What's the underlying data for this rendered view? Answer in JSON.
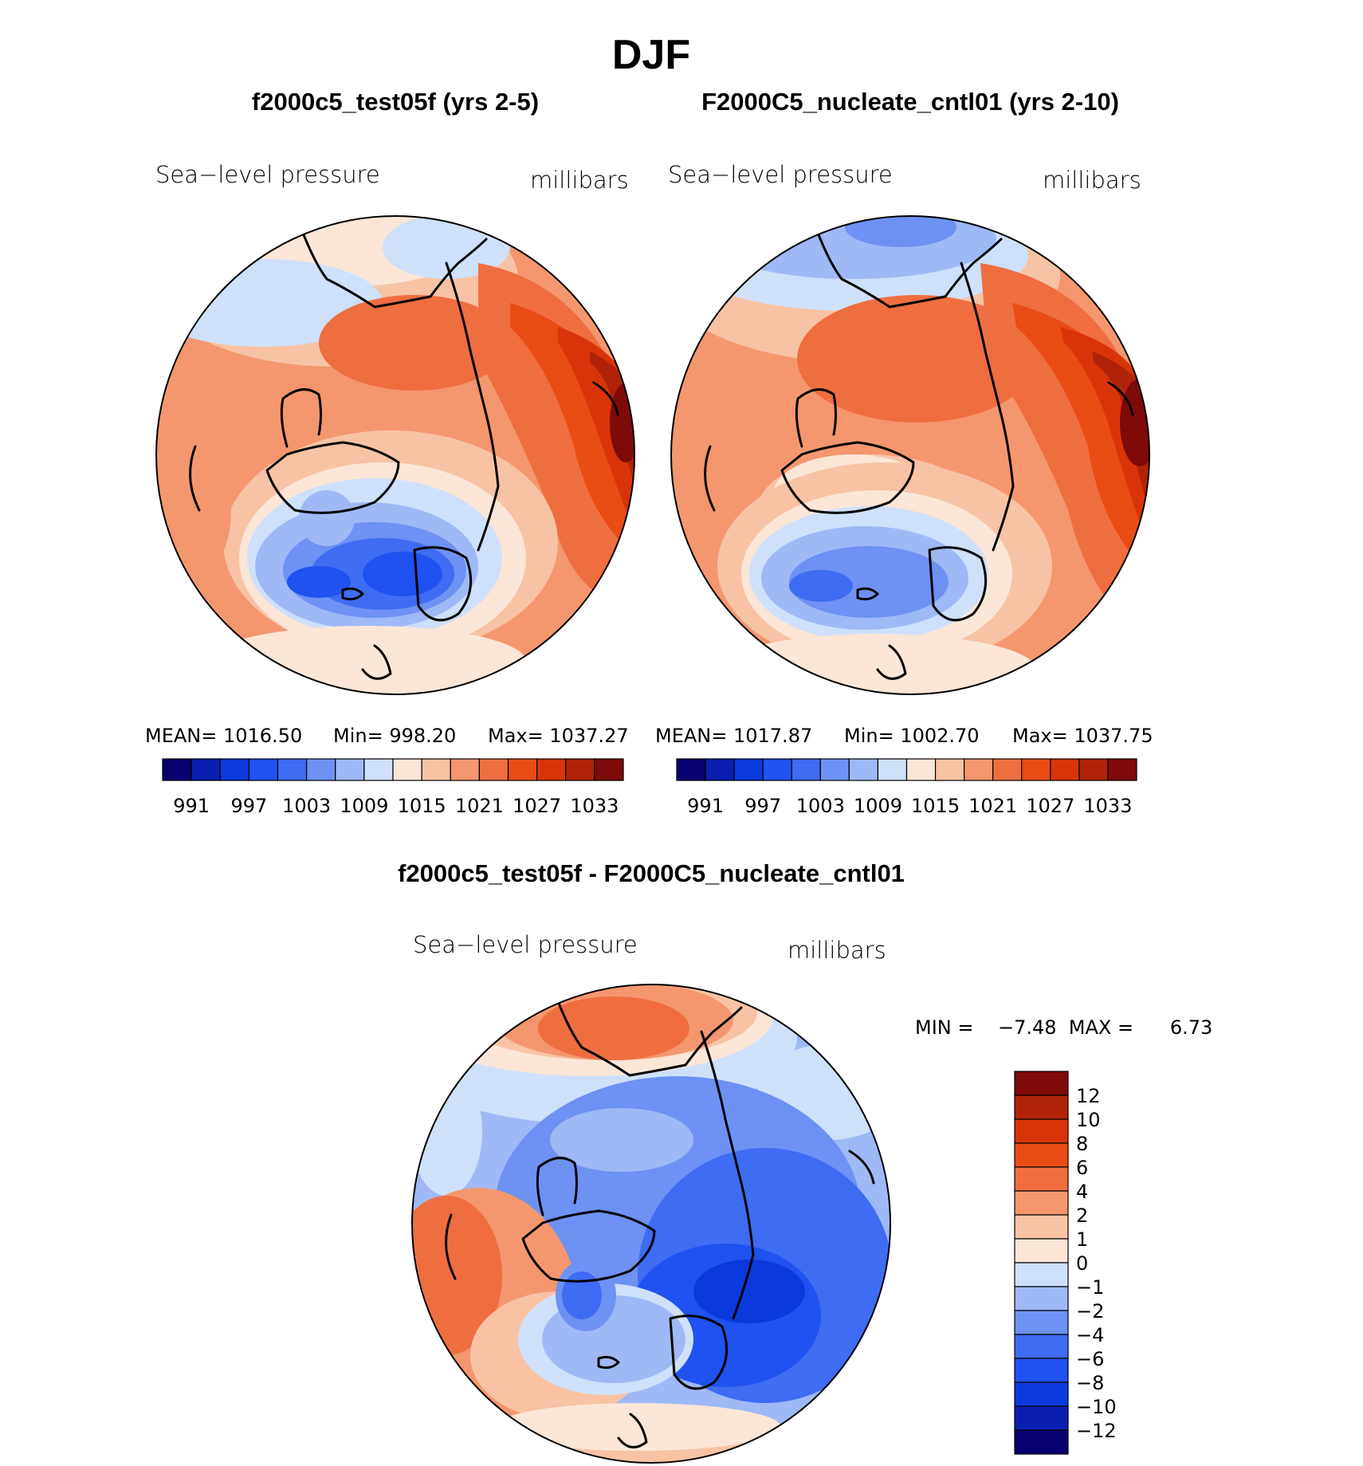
{
  "figure": {
    "title": "DJF",
    "variable_label": "Sea−level pressure",
    "units_label": "millibars"
  },
  "colors": {
    "diverging_scale": [
      "#08006f",
      "#0a1fb0",
      "#0b3adc",
      "#1f52f0",
      "#3e6cf2",
      "#6d92f3",
      "#9fb9f7",
      "#cfe0fb",
      "#fbe6d8",
      "#f8c3a4",
      "#f4976f",
      "#ef6e40",
      "#ea4c16",
      "#d93409",
      "#b02309",
      "#7f0a0a"
    ]
  },
  "panels": {
    "test": {
      "title": "f2000c5_test05f (yrs 2-5)",
      "mean_text": "MEAN=  1016.50",
      "min_text": "Min=  998.20",
      "max_text": "Max=  1037.27"
    },
    "control": {
      "title": "F2000C5_nucleate_cntl01 (yrs 2-10)",
      "mean_text": "MEAN=  1017.87",
      "min_text": "Min=  1002.70",
      "max_text": "Max=  1037.75"
    },
    "difference": {
      "title": "f2000c5_test05f - F2000C5_nucleate_cntl01",
      "minmax_text": "MIN =    −7.48  MAX =      6.73"
    }
  },
  "chart_data": [
    {
      "type": "heatmap",
      "name": "test",
      "title": "f2000c5_test05f (yrs 2-5)",
      "variable": "Sea−level pressure",
      "units": "millibars",
      "colorbar_ticks": [
        "991",
        "997",
        "1003",
        "1009",
        "1015",
        "1021",
        "1027",
        "1033"
      ],
      "contour_levels": [
        991,
        994,
        997,
        1000,
        1003,
        1006,
        1009,
        1012,
        1015,
        1018,
        1021,
        1024,
        1027,
        1030,
        1033
      ],
      "mean": 1016.5,
      "min": 998.2,
      "max": 1037.27
    },
    {
      "type": "heatmap",
      "name": "control",
      "title": "F2000C5_nucleate_cntl01 (yrs 2-10)",
      "variable": "Sea−level pressure",
      "units": "millibars",
      "colorbar_ticks": [
        "991",
        "997",
        "1003",
        "1009",
        "1015",
        "1021",
        "1027",
        "1033"
      ],
      "contour_levels": [
        991,
        994,
        997,
        1000,
        1003,
        1006,
        1009,
        1012,
        1015,
        1018,
        1021,
        1024,
        1027,
        1030,
        1033
      ],
      "mean": 1017.87,
      "min": 1002.7,
      "max": 1037.75
    },
    {
      "type": "heatmap",
      "name": "difference",
      "title": "f2000c5_test05f - F2000C5_nucleate_cntl01",
      "variable": "Sea−level pressure",
      "units": "millibars",
      "colorbar_ticks": [
        "12",
        "10",
        "8",
        "6",
        "4",
        "2",
        "1",
        "0",
        "−1",
        "−2",
        "−4",
        "−6",
        "−8",
        "−10",
        "−12"
      ],
      "min": -7.48,
      "max": 6.73
    }
  ]
}
